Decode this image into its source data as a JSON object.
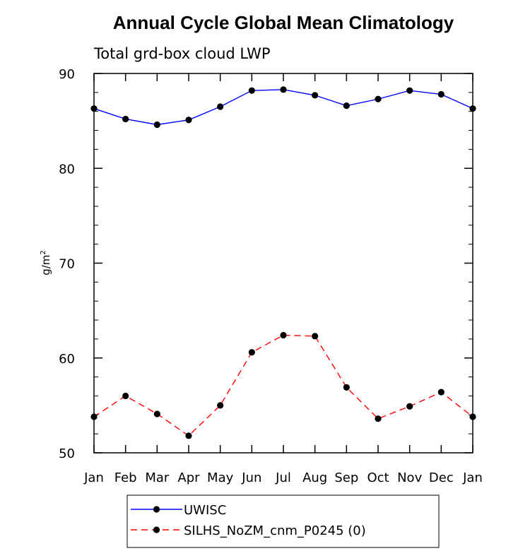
{
  "chart_data": {
    "type": "line",
    "title": "Annual Cycle Global Mean Climatology",
    "subtitle": "Total grd-box cloud LWP",
    "ylabel": "g/m",
    "ylabel_superscript": "2",
    "xlabel": "",
    "categories": [
      "Jan",
      "Feb",
      "Mar",
      "Apr",
      "May",
      "Jun",
      "Jul",
      "Aug",
      "Sep",
      "Oct",
      "Nov",
      "Dec",
      "Jan"
    ],
    "ylim": [
      50,
      90
    ],
    "yticks": [
      50,
      60,
      70,
      80,
      90
    ],
    "yminor_step": 2,
    "grid": false,
    "legend_position": "bottom",
    "series": [
      {
        "name": "UWISC",
        "color": "#0000ff",
        "dash": "solid",
        "marker": "filled-circle",
        "values": [
          86.3,
          85.2,
          84.6,
          85.1,
          86.5,
          88.2,
          88.3,
          87.7,
          86.6,
          87.3,
          88.2,
          87.8,
          86.3
        ]
      },
      {
        "name": "SILHS_NoZM_cnm_P0245 (0)",
        "color": "#ff0000",
        "dash": "dashed",
        "marker": "filled-circle",
        "values": [
          53.8,
          56.0,
          54.1,
          51.8,
          55.0,
          60.6,
          62.4,
          62.3,
          56.9,
          53.6,
          54.9,
          56.4,
          53.8
        ]
      }
    ]
  }
}
